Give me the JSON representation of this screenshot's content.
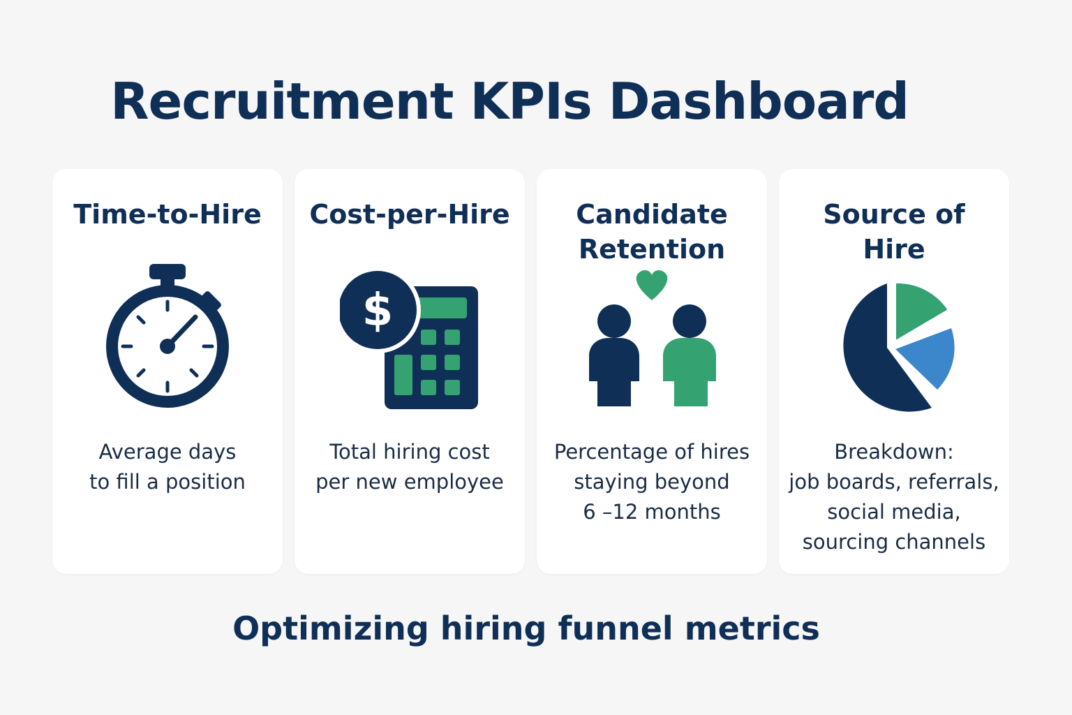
{
  "title": "Recruitment KPIs Dashboard",
  "colors": {
    "navy": "#0f2f57",
    "green": "#35a272",
    "blue": "#3c87cc",
    "card_bg": "#ffffff",
    "page_bg": "#f6f6f7"
  },
  "cards": [
    {
      "title": "Time-to-Hire",
      "icon": "stopwatch-icon",
      "description": "Average days\nto fill a position"
    },
    {
      "title": "Cost-per-Hire",
      "icon": "calculator-dollar-icon",
      "description": "Total hiring cost\nper new employee"
    },
    {
      "title": "Candidate\nRetention",
      "icon": "people-heart-icon",
      "description": "Percentage of hires\nstaying beyond\n6 –12 months"
    },
    {
      "title": "Source of\nHire",
      "icon": "pie-chart-icon",
      "description": "Breakdown:\njob boards, referrals,\nsocial media,\nsourcing channels"
    }
  ],
  "footer": "Optimizing hiring funnel metrics"
}
